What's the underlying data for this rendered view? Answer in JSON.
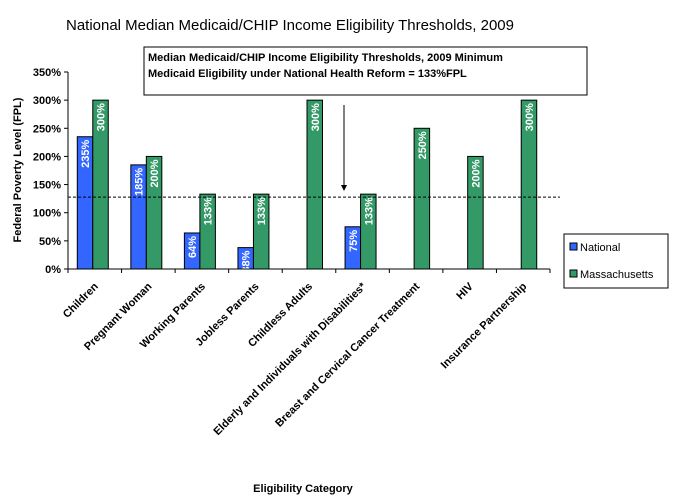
{
  "chart_data": {
    "type": "bar",
    "title": "National Median Medicaid/CHIP Income Eligibility Thresholds, 2009",
    "annotation": [
      "Median Medicaid/CHIP Income Eligibility Thresholds, 2009 Minimum",
      "Medicaid Eligibility under National Health Reform = 133%FPL"
    ],
    "xlabel": "Eligibility Category",
    "ylabel": "Federal Poverty Level (FPL)",
    "ylim": [
      0,
      350
    ],
    "yticks": [
      "0%",
      "50%",
      "100%",
      "150%",
      "200%",
      "250%",
      "300%",
      "350%"
    ],
    "reference_line": 133,
    "categories": [
      "Children",
      "Pregnant Woman",
      "Working Parents",
      "Jobless Parents",
      "Childless Adults",
      "Elderly and Individuals with Disabilities*",
      "Breast and Cervical Cancer Treatment",
      "HIV",
      "Insurance Partnership"
    ],
    "series": [
      {
        "name": "National",
        "color": "#3366ff",
        "values": [
          235,
          185,
          64,
          38,
          null,
          75,
          null,
          null,
          null
        ],
        "labels": [
          "235%",
          "185%",
          "64%",
          "38%",
          "",
          "75%",
          "",
          "",
          ""
        ]
      },
      {
        "name": "Massachusetts",
        "color": "#339966",
        "values": [
          300,
          200,
          133,
          133,
          300,
          133,
          250,
          200,
          300
        ],
        "labels": [
          "300%",
          "200%",
          "133%",
          "133%",
          "300%",
          "133%",
          "250%",
          "200%",
          "300%"
        ]
      }
    ],
    "legend": "right",
    "grid": false
  }
}
